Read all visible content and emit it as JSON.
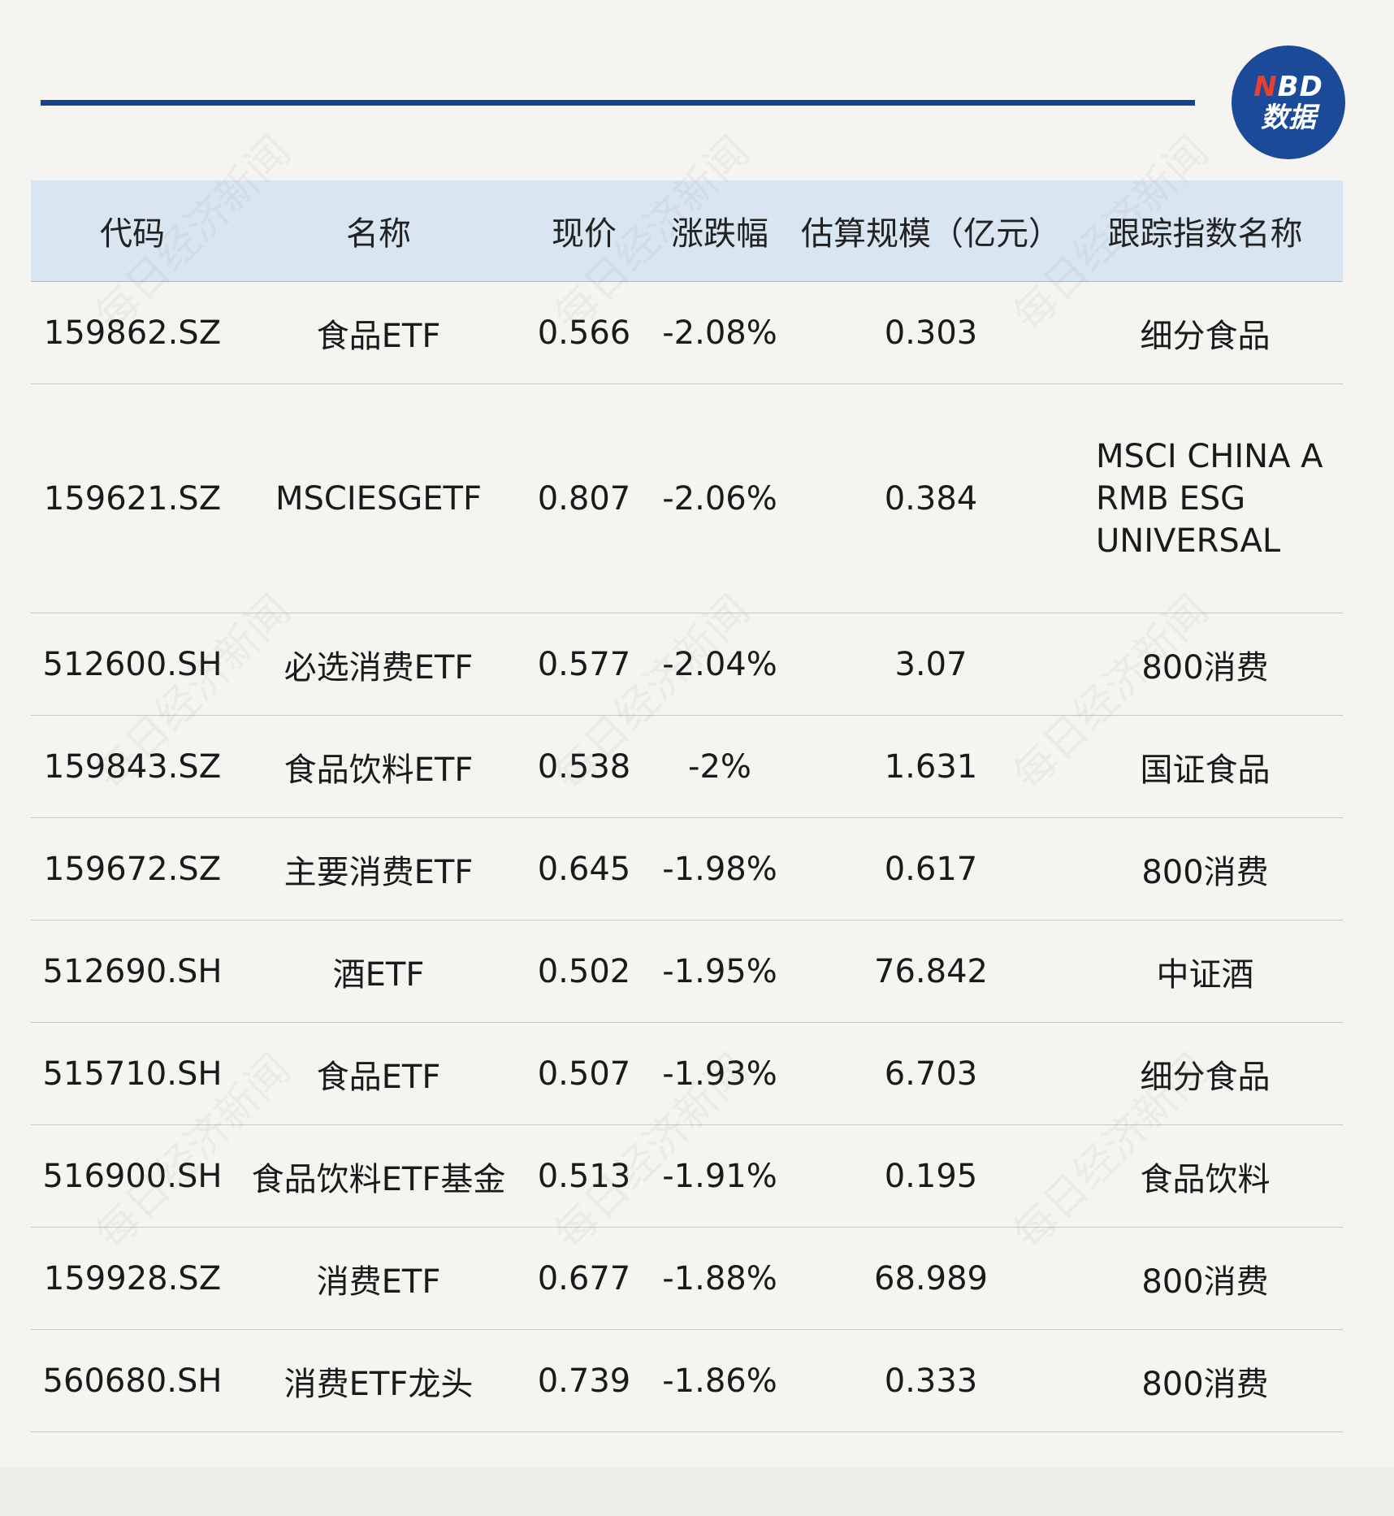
{
  "logo": {
    "line1_red": "N",
    "line1_rest": "BD",
    "line2": "数据"
  },
  "table": {
    "headers": [
      "代码",
      "名称",
      "现价",
      "涨跌幅",
      "估算规模（亿元）",
      "跟踪指数名称"
    ],
    "rows": [
      [
        "159862.SZ",
        "食品ETF",
        "0.566",
        "-2.08%",
        "0.303",
        "细分食品"
      ],
      [
        "159621.SZ",
        "MSCIESGETF",
        "0.807",
        "-2.06%",
        "0.384",
        "MSCI CHINA A RMB ESG UNIVERSAL"
      ],
      [
        "512600.SH",
        "必选消费ETF",
        "0.577",
        "-2.04%",
        "3.07",
        "800消费"
      ],
      [
        "159843.SZ",
        "食品饮料ETF",
        "0.538",
        "-2%",
        "1.631",
        "国证食品"
      ],
      [
        "159672.SZ",
        "主要消费ETF",
        "0.645",
        "-1.98%",
        "0.617",
        "800消费"
      ],
      [
        "512690.SH",
        "酒ETF",
        "0.502",
        "-1.95%",
        "76.842",
        "中证酒"
      ],
      [
        "515710.SH",
        "食品ETF",
        "0.507",
        "-1.93%",
        "6.703",
        "细分食品"
      ],
      [
        "516900.SH",
        "食品饮料ETF基金",
        "0.513",
        "-1.91%",
        "0.195",
        "食品饮料"
      ],
      [
        "159928.SZ",
        "消费ETF",
        "0.677",
        "-1.88%",
        "68.989",
        "800消费"
      ],
      [
        "560680.SH",
        "消费ETF龙头",
        "0.739",
        "-1.86%",
        "0.333",
        "800消费"
      ]
    ]
  },
  "watermark": "每日经济新闻",
  "colors": {
    "accent": "#16438c",
    "header_bg": "#d9e5f1",
    "page_bg": "#f6f4f0"
  }
}
